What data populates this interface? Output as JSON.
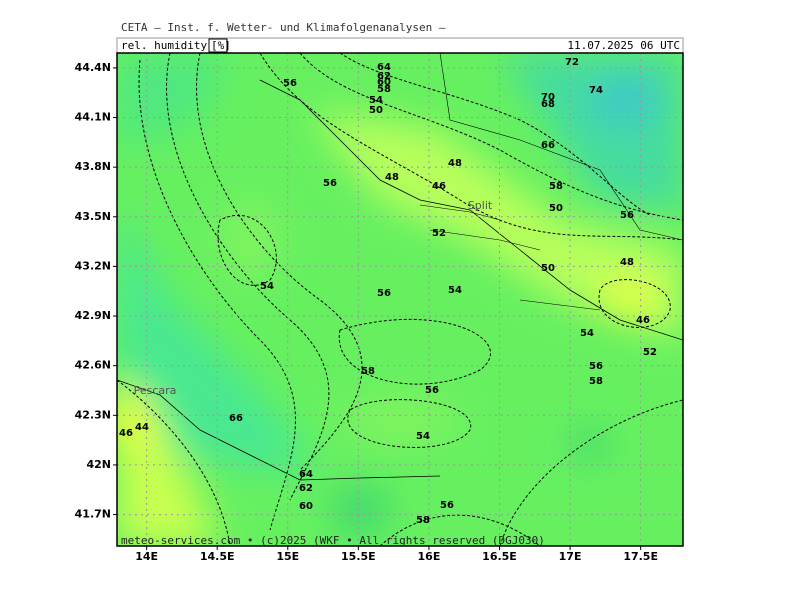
{
  "header": {
    "title": "CETA — Inst. f. Wetter- und Klimafolgenanalysen —",
    "parameter": "rel. humidity",
    "unit": "[%]",
    "datetime": "11.07.2025 06 UTC"
  },
  "map": {
    "lonlim": [
      13.79,
      17.8
    ],
    "latlim": [
      41.51,
      44.49
    ],
    "lonticks": [
      {
        "value": 14,
        "label": "14E"
      },
      {
        "value": 14.5,
        "label": "14.5E"
      },
      {
        "value": 15,
        "label": "15E"
      },
      {
        "value": 15.5,
        "label": "15.5E"
      },
      {
        "value": 16,
        "label": "16E"
      },
      {
        "value": 16.5,
        "label": "16.5E"
      },
      {
        "value": 17,
        "label": "17E"
      },
      {
        "value": 17.5,
        "label": "17.5E"
      }
    ],
    "latticks": [
      {
        "value": 44.4,
        "label": "44.4N"
      },
      {
        "value": 44.1,
        "label": "44.1N"
      },
      {
        "value": 43.8,
        "label": "43.8N"
      },
      {
        "value": 43.5,
        "label": "43.5N"
      },
      {
        "value": 43.2,
        "label": "43.2N"
      },
      {
        "value": 42.9,
        "label": "42.9N"
      },
      {
        "value": 42.6,
        "label": "42.6N"
      },
      {
        "value": 42.3,
        "label": "42.3N"
      },
      {
        "value": 42,
        "label": "42N"
      },
      {
        "value": 41.7,
        "label": "41.7N"
      }
    ],
    "grid": true,
    "contour_labels": [
      56,
      64,
      62,
      60,
      58,
      54,
      50,
      72,
      74,
      70,
      68,
      66,
      48,
      46,
      48,
      56,
      52,
      58,
      50,
      56,
      50,
      48,
      54,
      56,
      54,
      54,
      46,
      52,
      56,
      58,
      58,
      56,
      66,
      54,
      44,
      46,
      64,
      62,
      60,
      58,
      56
    ],
    "places": [
      "Split",
      "Pescara"
    ]
  },
  "footer": "meteo-services.com • (c)2025 (WKF • All rights reserved (DGJ030)"
}
